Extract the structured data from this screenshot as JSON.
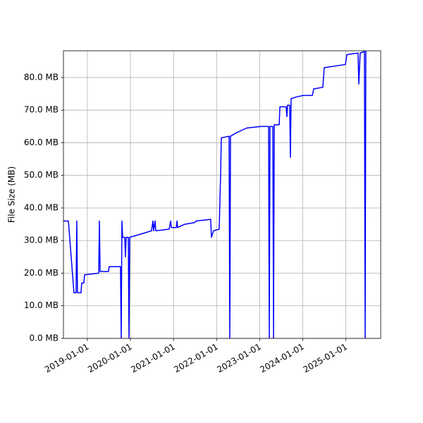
{
  "chart_data": {
    "type": "line",
    "ylabel": "File Size (MB)",
    "color": "#0000ff",
    "grid": true,
    "x": [
      "2018-06-12",
      "2018-07-24",
      "2018-09-09",
      "2018-09-27",
      "2018-10-03",
      "2018-10-09",
      "2018-11-08",
      "2018-11-14",
      "2018-12-02",
      "2018-12-08",
      "2019-04-07",
      "2019-04-13",
      "2019-04-19",
      "2019-06-29",
      "2019-07-05",
      "2019-10-09",
      "2019-10-15",
      "2019-10-21",
      "2019-10-27",
      "2019-11-14",
      "2019-11-20",
      "2019-11-26",
      "2019-12-14",
      "2019-12-20",
      "2019-12-26",
      "2020-03-30",
      "2020-06-28",
      "2020-07-10",
      "2020-07-16",
      "2020-07-28",
      "2020-08-03",
      "2020-11-25",
      "2020-12-07",
      "2020-12-13",
      "2021-01-24",
      "2021-01-30",
      "2021-02-04",
      "2021-04-05",
      "2021-06-28",
      "2021-07-10",
      "2021-11-12",
      "2021-11-18",
      "2021-12-06",
      "2022-01-23",
      "2022-02-04",
      "2022-02-10",
      "2022-04-17",
      "2022-04-23",
      "2022-04-29",
      "2022-06-16",
      "2022-09-13",
      "2023-01-11",
      "2023-03-18",
      "2023-03-24",
      "2023-03-30",
      "2023-04-23",
      "2023-04-29",
      "2023-05-05",
      "2023-06-16",
      "2023-06-22",
      "2023-08-14",
      "2023-08-20",
      "2023-08-26",
      "2023-09-13",
      "2023-09-19",
      "2023-09-25",
      "2023-11-06",
      "2024-01-05",
      "2024-03-23",
      "2024-04-04",
      "2024-06-20",
      "2024-07-02",
      "2024-12-29",
      "2025-01-10",
      "2025-04-15",
      "2025-04-21",
      "2025-05-03",
      "2025-06-08",
      "2025-06-14",
      "2025-06-20"
    ],
    "values": [
      36,
      36,
      14,
      14,
      36,
      14,
      14,
      17,
      17,
      19.5,
      20,
      36,
      20.5,
      20.5,
      22,
      22,
      0,
      36,
      31,
      31,
      25,
      31,
      31,
      0,
      31,
      32,
      33,
      36,
      33,
      36,
      33,
      33.5,
      36,
      34,
      34,
      36,
      34,
      35,
      35.5,
      36,
      36.5,
      31,
      33,
      33.5,
      50,
      61.5,
      62,
      0,
      62,
      63,
      64.5,
      65,
      65,
      0,
      65,
      65,
      0,
      65.5,
      65.5,
      71,
      71,
      68,
      71.5,
      71.5,
      55.5,
      73.5,
      74,
      74.5,
      74.5,
      76.5,
      77,
      83,
      84,
      87,
      87.5,
      78,
      87.5,
      88,
      0,
      88.2
    ],
    "xlim": [
      "2018-06-12",
      "2025-10-24"
    ],
    "xticks": [
      "2019-01-01",
      "2020-01-01",
      "2021-01-01",
      "2022-01-01",
      "2023-01-01",
      "2024-01-01",
      "2025-01-01"
    ],
    "ylim": [
      0,
      88.2
    ],
    "yticks": [
      {
        "value": 0,
        "label": "0.0 MB"
      },
      {
        "value": 10,
        "label": "10.0 MB"
      },
      {
        "value": 20,
        "label": "20.0 MB"
      },
      {
        "value": 30,
        "label": "30.0 MB"
      },
      {
        "value": 40,
        "label": "40.0 MB"
      },
      {
        "value": 50,
        "label": "50.0 MB"
      },
      {
        "value": 60,
        "label": "60.0 MB"
      },
      {
        "value": 70,
        "label": "70.0 MB"
      },
      {
        "value": 80,
        "label": "80.0 MB"
      }
    ]
  }
}
